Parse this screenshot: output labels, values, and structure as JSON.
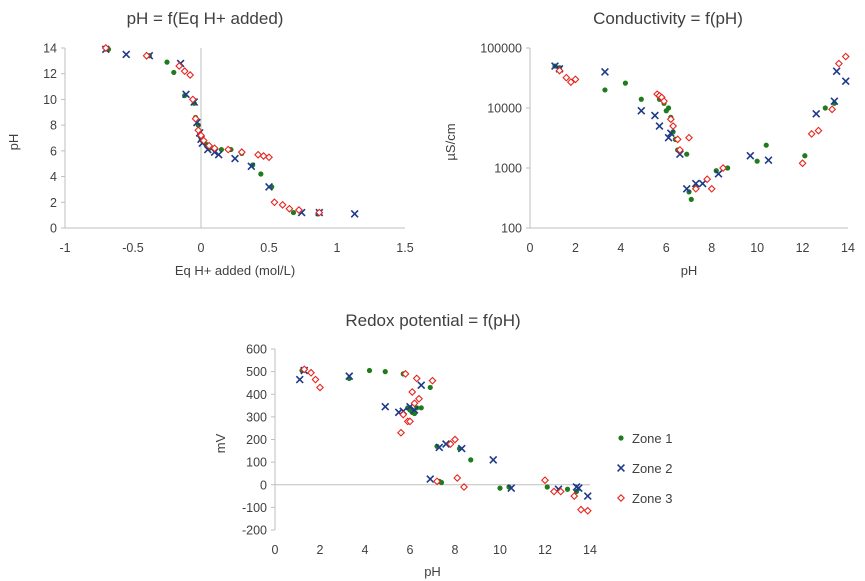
{
  "colors": {
    "zone1": "#1e7b1e",
    "zone2": "#1f3a8a",
    "zone3": "#e8261e",
    "axis": "#bfbfbf"
  },
  "legend": {
    "placement": "right",
    "items": [
      "Zone 1",
      "Zone 2",
      "Zone 3"
    ]
  },
  "chart_data": [
    {
      "type": "scatter",
      "title": "pH = f(Eq H+ added)",
      "xlabel": "Eq H+ added (mol/L)",
      "ylabel": "pH",
      "xlim": [
        -1,
        1.5
      ],
      "ylim": [
        0,
        14
      ],
      "xticks": [
        -1,
        -0.5,
        0,
        0.5,
        1,
        1.5
      ],
      "xtick_labels": [
        "-1",
        "-0.5",
        "0",
        "0.5",
        "1",
        "1.5"
      ],
      "yticks": [
        0,
        2,
        4,
        6,
        8,
        10,
        12,
        14
      ],
      "ytick_labels": [
        "0",
        "2",
        "4",
        "6",
        "8",
        "10",
        "12",
        "14"
      ],
      "grid": false,
      "series": [
        {
          "name": "Zone 1",
          "marker": "dot",
          "points": [
            [
              -0.68,
              13.9
            ],
            [
              -0.38,
              13.4
            ],
            [
              -0.2,
              12.1
            ],
            [
              -0.12,
              10.3
            ],
            [
              -0.05,
              9.7
            ],
            [
              -0.04,
              8.6
            ],
            [
              -0.02,
              8.0
            ],
            [
              -0.01,
              7.4
            ],
            [
              0.0,
              7.0
            ],
            [
              0.02,
              6.8
            ],
            [
              0.04,
              6.5
            ],
            [
              0.06,
              6.2
            ],
            [
              0.1,
              6.1
            ],
            [
              0.15,
              6.1
            ],
            [
              0.22,
              6.1
            ],
            [
              0.3,
              5.8
            ],
            [
              0.38,
              4.9
            ],
            [
              0.44,
              4.2
            ],
            [
              0.52,
              3.2
            ],
            [
              0.68,
              1.2
            ],
            [
              0.86,
              1.1
            ],
            [
              -0.25,
              12.9
            ]
          ]
        },
        {
          "name": "Zone 2",
          "marker": "x",
          "points": [
            [
              -0.7,
              13.9
            ],
            [
              -0.55,
              13.5
            ],
            [
              -0.38,
              13.4
            ],
            [
              -0.15,
              12.8
            ],
            [
              -0.11,
              10.4
            ],
            [
              -0.05,
              9.8
            ],
            [
              -0.03,
              8.2
            ],
            [
              -0.01,
              7.4
            ],
            [
              0.0,
              6.9
            ],
            [
              0.01,
              6.6
            ],
            [
              0.05,
              6.1
            ],
            [
              0.1,
              5.9
            ],
            [
              0.13,
              5.7
            ],
            [
              0.25,
              5.4
            ],
            [
              0.37,
              4.8
            ],
            [
              0.5,
              3.2
            ],
            [
              0.74,
              1.2
            ],
            [
              0.87,
              1.2
            ],
            [
              1.13,
              1.1
            ]
          ]
        },
        {
          "name": "Zone 3",
          "marker": "diamond",
          "points": [
            [
              -0.7,
              14.0
            ],
            [
              -0.4,
              13.4
            ],
            [
              -0.16,
              12.6
            ],
            [
              -0.12,
              12.2
            ],
            [
              -0.08,
              11.9
            ],
            [
              -0.06,
              10.0
            ],
            [
              -0.04,
              8.5
            ],
            [
              -0.02,
              7.6
            ],
            [
              0.0,
              7.2
            ],
            [
              0.02,
              6.8
            ],
            [
              0.06,
              6.4
            ],
            [
              0.1,
              6.2
            ],
            [
              0.2,
              6.1
            ],
            [
              0.3,
              5.9
            ],
            [
              0.42,
              5.7
            ],
            [
              0.46,
              5.6
            ],
            [
              0.5,
              5.5
            ],
            [
              0.54,
              2.0
            ],
            [
              0.6,
              1.8
            ],
            [
              0.65,
              1.5
            ],
            [
              0.72,
              1.4
            ],
            [
              0.87,
              1.2
            ]
          ]
        }
      ]
    },
    {
      "type": "scatter",
      "title": "Conductivity = f(pH)",
      "xlabel": "pH",
      "ylabel": "µS/cm",
      "xlim": [
        0,
        14
      ],
      "ylim": [
        100,
        100000
      ],
      "yscale": "log",
      "xticks": [
        0,
        2,
        4,
        6,
        8,
        10,
        12,
        14
      ],
      "xtick_labels": [
        "0",
        "2",
        "4",
        "6",
        "8",
        "10",
        "12",
        "14"
      ],
      "yticks": [
        100,
        1000,
        10000,
        100000
      ],
      "ytick_labels": [
        "100",
        "1000",
        "10000",
        "100000"
      ],
      "grid": false,
      "series": [
        {
          "name": "Zone 1",
          "marker": "dot",
          "points": [
            [
              1.1,
              50000
            ],
            [
              1.3,
              47000
            ],
            [
              3.3,
              20000
            ],
            [
              4.2,
              26000
            ],
            [
              4.9,
              14000
            ],
            [
              5.7,
              14000
            ],
            [
              5.9,
              12000
            ],
            [
              6.0,
              9000
            ],
            [
              6.1,
              10000
            ],
            [
              6.2,
              7000
            ],
            [
              6.3,
              4000
            ],
            [
              6.4,
              3000
            ],
            [
              6.5,
              2000
            ],
            [
              6.9,
              1700
            ],
            [
              7.0,
              400
            ],
            [
              7.1,
              300
            ],
            [
              7.3,
              500
            ],
            [
              8.2,
              900
            ],
            [
              8.7,
              1000
            ],
            [
              10.0,
              1300
            ],
            [
              10.4,
              2400
            ],
            [
              12.1,
              1600
            ],
            [
              13.0,
              10000
            ],
            [
              13.4,
              12000
            ]
          ]
        },
        {
          "name": "Zone 2",
          "marker": "x",
          "points": [
            [
              1.1,
              50000
            ],
            [
              1.3,
              45000
            ],
            [
              3.3,
              40000
            ],
            [
              4.9,
              9000
            ],
            [
              5.5,
              7500
            ],
            [
              5.7,
              5000
            ],
            [
              6.1,
              3200
            ],
            [
              6.2,
              3800
            ],
            [
              6.6,
              1700
            ],
            [
              6.9,
              450
            ],
            [
              7.3,
              550
            ],
            [
              7.6,
              550
            ],
            [
              8.3,
              800
            ],
            [
              9.7,
              1600
            ],
            [
              10.5,
              1350
            ],
            [
              12.6,
              8000
            ],
            [
              13.4,
              13000
            ],
            [
              13.5,
              41000
            ],
            [
              13.9,
              28000
            ]
          ]
        },
        {
          "name": "Zone 3",
          "marker": "diamond",
          "points": [
            [
              1.3,
              42000
            ],
            [
              1.6,
              32000
            ],
            [
              1.8,
              27000
            ],
            [
              2.0,
              30000
            ],
            [
              5.6,
              17000
            ],
            [
              5.7,
              16000
            ],
            [
              5.8,
              15000
            ],
            [
              5.9,
              13000
            ],
            [
              6.2,
              6500
            ],
            [
              6.3,
              5000
            ],
            [
              6.5,
              3000
            ],
            [
              6.6,
              2000
            ],
            [
              7.0,
              3200
            ],
            [
              7.3,
              450
            ],
            [
              7.8,
              650
            ],
            [
              8.0,
              450
            ],
            [
              8.5,
              1000
            ],
            [
              12.0,
              1200
            ],
            [
              12.4,
              3700
            ],
            [
              12.7,
              4200
            ],
            [
              13.3,
              9500
            ],
            [
              13.6,
              55000
            ],
            [
              13.9,
              72000
            ]
          ]
        }
      ]
    },
    {
      "type": "scatter",
      "title": "Redox potential = f(pH)",
      "xlabel": "pH",
      "ylabel": "mV",
      "xlim": [
        0,
        14
      ],
      "ylim": [
        -200,
        600
      ],
      "xticks": [
        0,
        2,
        4,
        6,
        8,
        10,
        12,
        14
      ],
      "xtick_labels": [
        "0",
        "2",
        "4",
        "6",
        "8",
        "10",
        "12",
        "14"
      ],
      "yticks": [
        -200,
        -100,
        0,
        100,
        200,
        300,
        400,
        500,
        600
      ],
      "ytick_labels": [
        "-200",
        "-100",
        "0",
        "100",
        "200",
        "300",
        "400",
        "500",
        "600"
      ],
      "grid": false,
      "series": [
        {
          "name": "Zone 1",
          "marker": "dot",
          "points": [
            [
              1.2,
              505
            ],
            [
              3.3,
              470
            ],
            [
              4.2,
              505
            ],
            [
              4.9,
              500
            ],
            [
              5.7,
              490
            ],
            [
              5.9,
              340
            ],
            [
              6.0,
              330
            ],
            [
              6.1,
              320
            ],
            [
              6.2,
              315
            ],
            [
              6.3,
              340
            ],
            [
              6.5,
              340
            ],
            [
              6.9,
              430
            ],
            [
              7.2,
              170
            ],
            [
              7.3,
              15
            ],
            [
              7.4,
              10
            ],
            [
              8.2,
              160
            ],
            [
              8.7,
              110
            ],
            [
              10.0,
              -15
            ],
            [
              10.4,
              -10
            ],
            [
              12.1,
              -10
            ],
            [
              13.0,
              -20
            ],
            [
              13.4,
              -30
            ]
          ]
        },
        {
          "name": "Zone 2",
          "marker": "x",
          "points": [
            [
              1.1,
              465
            ],
            [
              1.3,
              505
            ],
            [
              3.3,
              480
            ],
            [
              4.9,
              345
            ],
            [
              5.5,
              320
            ],
            [
              5.7,
              325
            ],
            [
              6.0,
              345
            ],
            [
              6.2,
              330
            ],
            [
              6.5,
              440
            ],
            [
              6.9,
              25
            ],
            [
              7.3,
              165
            ],
            [
              7.6,
              180
            ],
            [
              8.3,
              160
            ],
            [
              9.7,
              110
            ],
            [
              10.5,
              -15
            ],
            [
              12.6,
              -20
            ],
            [
              13.4,
              -10
            ],
            [
              13.5,
              -15
            ],
            [
              13.9,
              -50
            ]
          ]
        },
        {
          "name": "Zone 3",
          "marker": "diamond",
          "points": [
            [
              1.3,
              510
            ],
            [
              1.6,
              495
            ],
            [
              1.8,
              465
            ],
            [
              2.0,
              430
            ],
            [
              5.6,
              230
            ],
            [
              5.7,
              310
            ],
            [
              5.8,
              490
            ],
            [
              5.9,
              280
            ],
            [
              6.0,
              280
            ],
            [
              6.1,
              410
            ],
            [
              6.2,
              360
            ],
            [
              6.3,
              470
            ],
            [
              6.4,
              380
            ],
            [
              7.0,
              460
            ],
            [
              7.2,
              15
            ],
            [
              7.8,
              180
            ],
            [
              8.0,
              200
            ],
            [
              8.1,
              30
            ],
            [
              8.4,
              -10
            ],
            [
              12.0,
              20
            ],
            [
              12.4,
              -30
            ],
            [
              12.7,
              -30
            ],
            [
              13.3,
              -50
            ],
            [
              13.6,
              -110
            ],
            [
              13.9,
              -115
            ]
          ]
        }
      ]
    }
  ]
}
